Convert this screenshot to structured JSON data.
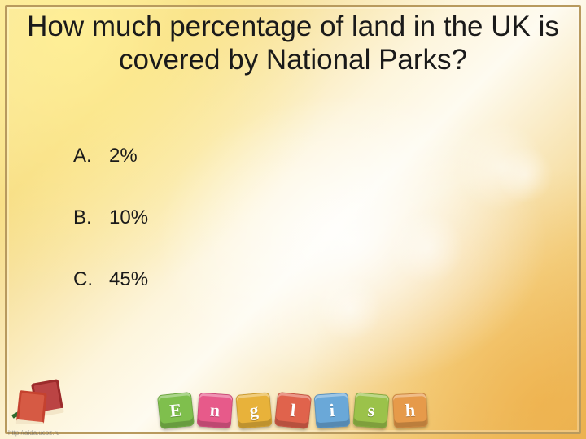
{
  "question": "How much percentage of land in the UK is covered by National Parks?",
  "options": [
    {
      "letter": "A.",
      "text": "2%"
    },
    {
      "letter": "B.",
      "text": "10%"
    },
    {
      "letter": "C.",
      "text": "45%"
    }
  ],
  "question_fontsize": 35,
  "option_fontsize": 24,
  "text_color": "#1a1a1a",
  "frame_border_color": "#b89a5e",
  "background_gradient": [
    "#f8e6a8",
    "#fdf5dc",
    "#e8b860"
  ],
  "blocks": [
    {
      "letter": "E",
      "color": "#7fbf4d",
      "rotate": -6
    },
    {
      "letter": "n",
      "color": "#e75a8a",
      "rotate": 4
    },
    {
      "letter": "g",
      "color": "#e8b23a",
      "rotate": -5
    },
    {
      "letter": "l",
      "color": "#e0634c",
      "rotate": 6
    },
    {
      "letter": "i",
      "color": "#6aa8d8",
      "rotate": -4
    },
    {
      "letter": "s",
      "color": "#9bc24a",
      "rotate": 5
    },
    {
      "letter": "h",
      "color": "#e69a4a",
      "rotate": -3
    }
  ],
  "credit_text": "http://aida.ucoz.ru",
  "books_colors": {
    "book1": "#9c2b2b",
    "book2": "#c5422f",
    "pencil": "#2e6b2e"
  }
}
